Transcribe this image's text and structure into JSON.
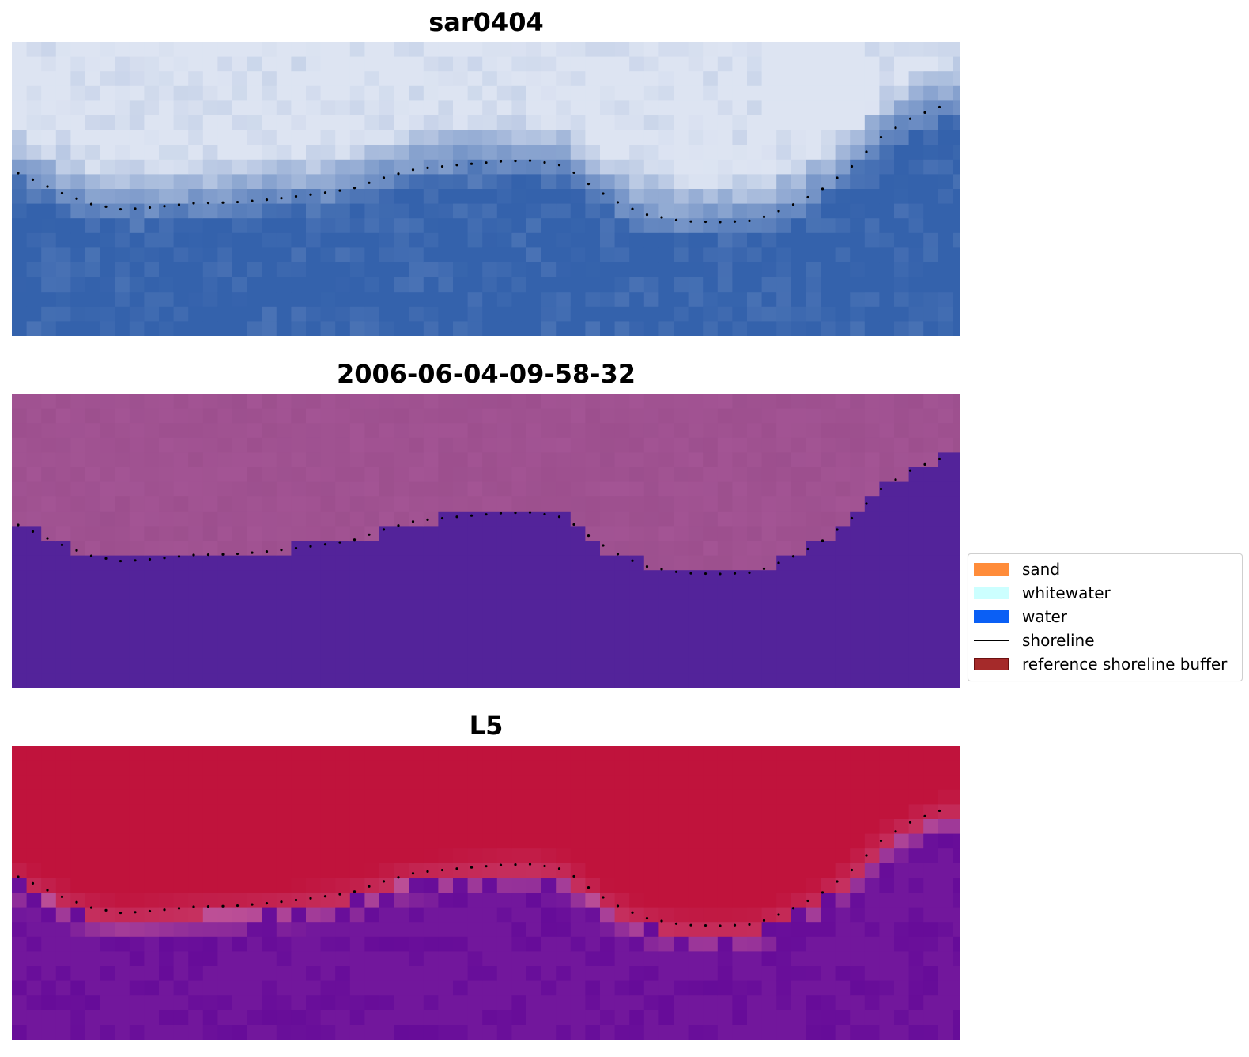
{
  "panels": [
    {
      "title": "sar0404",
      "style": "sar"
    },
    {
      "title": "2006-06-04-09-58-32",
      "style": "classified"
    },
    {
      "title": "L5",
      "style": "index"
    }
  ],
  "legend": {
    "items": [
      {
        "label": "sand",
        "color": "#ff8c3a",
        "kind": "patch"
      },
      {
        "label": "whitewater",
        "color": "#ccffff",
        "kind": "patch"
      },
      {
        "label": "water",
        "color": "#0a5ff5",
        "kind": "patch"
      },
      {
        "label": "shoreline",
        "color": "#000000",
        "kind": "line"
      },
      {
        "label": "reference shoreline buffer",
        "color": "#a52a2a",
        "kind": "patch-edged"
      }
    ]
  },
  "colors": {
    "sar_bright": "#dde4f2",
    "sar_water": "#3462ac",
    "class_land": "#a35494",
    "class_water": "#53239a",
    "index_land": "#c0133c",
    "index_water": "#72179c",
    "shoreline": "#000000"
  }
}
